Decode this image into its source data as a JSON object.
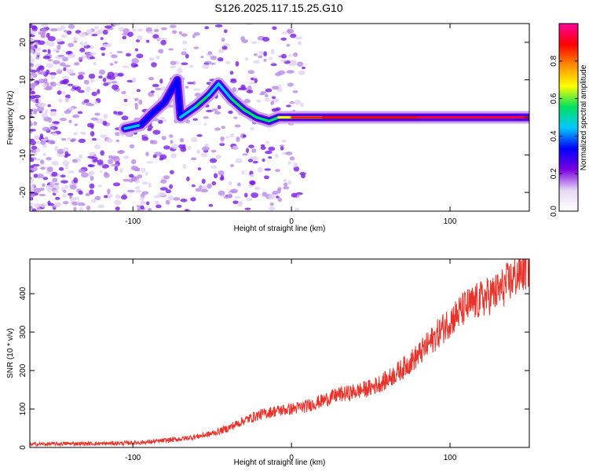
{
  "title": "S126.2025.117.15.25.G10",
  "chart_data": [
    {
      "type": "heatmap",
      "xlabel": "Height of straight line (km)",
      "ylabel": "Frequency (Hz)",
      "xlim": [
        -165,
        150
      ],
      "ylim": [
        -25,
        25
      ],
      "xticks": [
        -100,
        0,
        100
      ],
      "yticks": [
        -20,
        -10,
        0,
        10,
        20
      ],
      "colorbar": {
        "label": "Normalized spectral amplitude",
        "range": [
          0,
          1
        ],
        "ticks": [
          0.0,
          0.2,
          0.4,
          0.6,
          0.8
        ],
        "tick_labels": [
          "0.0",
          "0.2",
          "0.4",
          "0.6",
          "0.8"
        ],
        "colormap": [
          "#ffffff",
          "#e6d8f5",
          "#7a00e0",
          "#0000ff",
          "#00c8ff",
          "#00e060",
          "#ffff00",
          "#ff8c00",
          "#ff0000",
          "#ff00a0"
        ]
      },
      "ridge": [
        {
          "x": -105,
          "y": -3,
          "amp": 0.4
        },
        {
          "x": -95,
          "y": -2,
          "amp": 0.4
        },
        {
          "x": -88,
          "y": 1,
          "amp": 0.35
        },
        {
          "x": -80,
          "y": 4,
          "amp": 0.35
        },
        {
          "x": -72,
          "y": 10,
          "amp": 0.3
        },
        {
          "x": -70,
          "y": 0,
          "amp": 0.3
        },
        {
          "x": -60,
          "y": 3,
          "amp": 0.4
        },
        {
          "x": -52,
          "y": 6,
          "amp": 0.5
        },
        {
          "x": -46,
          "y": 9,
          "amp": 0.4
        },
        {
          "x": -38,
          "y": 5,
          "amp": 0.45
        },
        {
          "x": -30,
          "y": 2,
          "amp": 0.5
        },
        {
          "x": -22,
          "y": 0,
          "amp": 0.55
        },
        {
          "x": -14,
          "y": -1,
          "amp": 0.5
        },
        {
          "x": -8,
          "y": 0,
          "amp": 0.5
        },
        {
          "x": 0,
          "y": 0,
          "amp": 0.7
        },
        {
          "x": 20,
          "y": 0,
          "amp": 0.8
        },
        {
          "x": 40,
          "y": 0,
          "amp": 0.85
        },
        {
          "x": 60,
          "y": 0,
          "amp": 0.9
        },
        {
          "x": 80,
          "y": 0,
          "amp": 0.9
        },
        {
          "x": 100,
          "y": 0,
          "amp": 0.95
        },
        {
          "x": 120,
          "y": 0,
          "amp": 0.95
        },
        {
          "x": 150,
          "y": 0,
          "amp": 0.95
        }
      ],
      "line_color": "#ff0000"
    },
    {
      "type": "line",
      "xlabel": "Height of straight line (km)",
      "ylabel": "SNR (10 * v/v)",
      "xlim": [
        -165,
        150
      ],
      "ylim": [
        0,
        490
      ],
      "xticks": [
        -100,
        0,
        100
      ],
      "yticks": [
        0,
        100,
        200,
        300,
        400
      ],
      "series": [
        {
          "color": "#e8322a",
          "x": [
            -165,
            -140,
            -120,
            -100,
            -90,
            -80,
            -70,
            -60,
            -50,
            -40,
            -30,
            -20,
            -10,
            0,
            10,
            20,
            30,
            35,
            40,
            50,
            60,
            70,
            80,
            90,
            100,
            110,
            120,
            130,
            140,
            150
          ],
          "y": [
            8,
            10,
            10,
            12,
            14,
            18,
            22,
            28,
            36,
            50,
            70,
            85,
            95,
            100,
            108,
            122,
            138,
            140,
            145,
            155,
            175,
            205,
            240,
            285,
            330,
            365,
            385,
            405,
            440,
            475
          ]
        }
      ]
    }
  ]
}
